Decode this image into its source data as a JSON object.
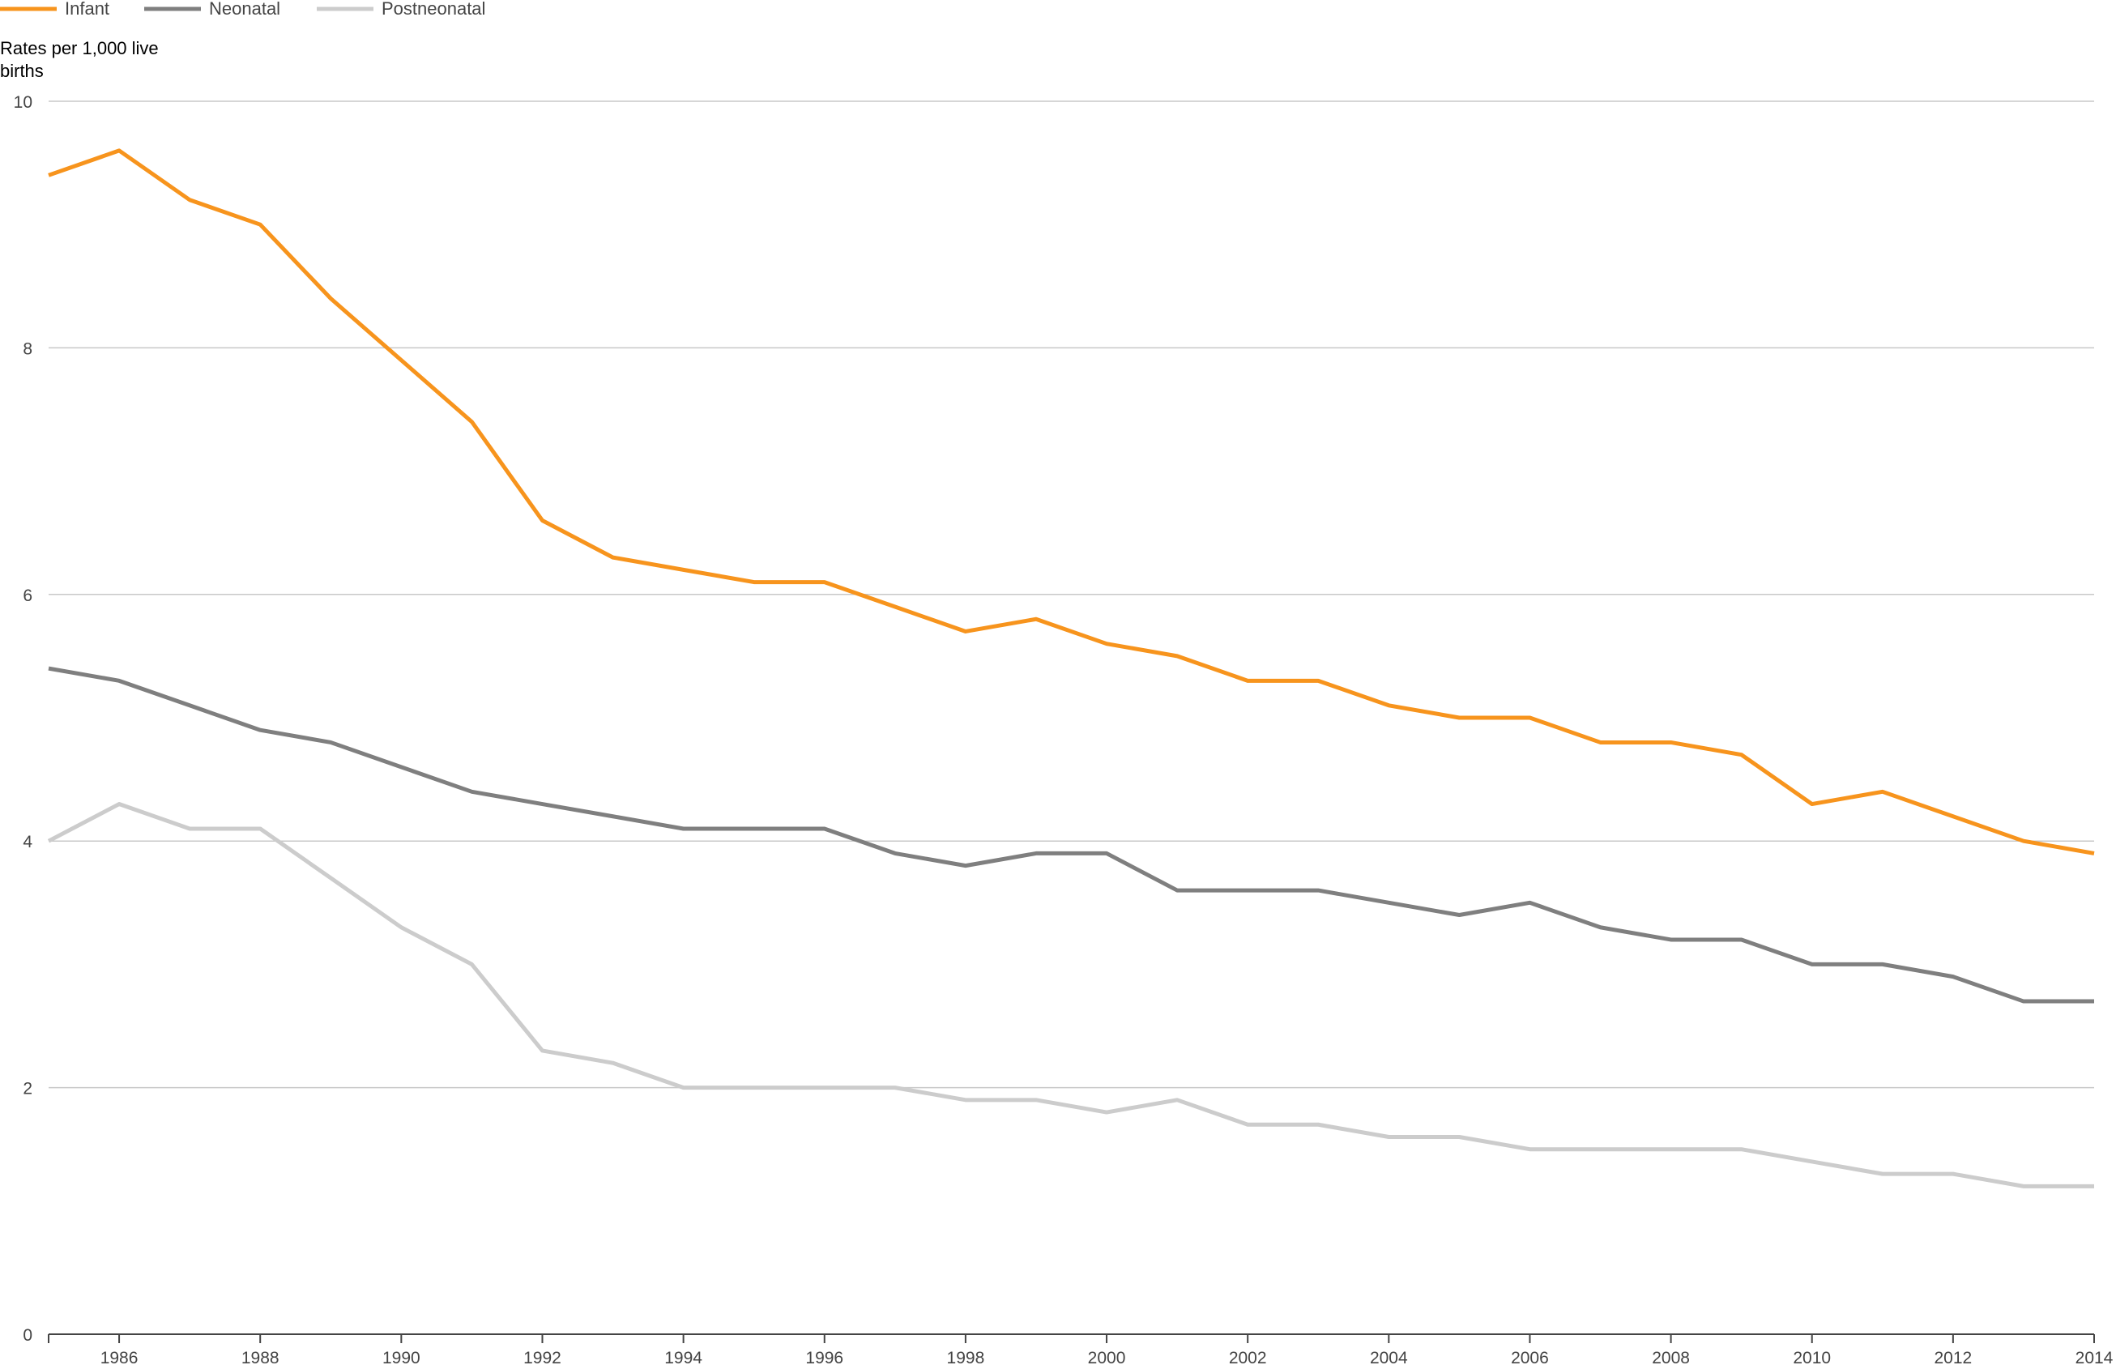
{
  "chart_data": {
    "type": "line",
    "ylabel_lines": [
      "Rates per 1,000 live",
      "births"
    ],
    "xlim": [
      1985,
      2014
    ],
    "ylim": [
      0,
      10
    ],
    "yticks": [
      0,
      2,
      4,
      6,
      8,
      10
    ],
    "xticks": [
      1986,
      1988,
      1990,
      1992,
      1994,
      1996,
      1998,
      2000,
      2002,
      2004,
      2006,
      2008,
      2010,
      2012,
      2014
    ],
    "grid": "horizontal",
    "legend_position": "top-left",
    "x": [
      1985,
      1986,
      1987,
      1988,
      1989,
      1990,
      1991,
      1992,
      1993,
      1994,
      1995,
      1996,
      1997,
      1998,
      1999,
      2000,
      2001,
      2002,
      2003,
      2004,
      2005,
      2006,
      2007,
      2008,
      2009,
      2010,
      2011,
      2012,
      2013,
      2014
    ],
    "series": [
      {
        "name": "Infant",
        "color": "#F7941D",
        "values": [
          9.4,
          9.6,
          9.2,
          9.0,
          8.4,
          7.9,
          7.4,
          6.6,
          6.3,
          6.2,
          6.1,
          6.1,
          5.9,
          5.7,
          5.8,
          5.6,
          5.5,
          5.3,
          5.3,
          5.1,
          5.0,
          5.0,
          4.8,
          4.8,
          4.7,
          4.3,
          4.4,
          4.2,
          4.0,
          3.9
        ]
      },
      {
        "name": "Neonatal",
        "color": "#7F7F7F",
        "values": [
          5.4,
          5.3,
          5.1,
          4.9,
          4.8,
          4.6,
          4.4,
          4.3,
          4.2,
          4.1,
          4.1,
          4.1,
          3.9,
          3.8,
          3.9,
          3.9,
          3.6,
          3.6,
          3.6,
          3.5,
          3.4,
          3.5,
          3.3,
          3.2,
          3.2,
          3.0,
          3.0,
          2.9,
          2.7,
          2.7
        ]
      },
      {
        "name": "Postneonatal",
        "color": "#CCCCCC",
        "values": [
          4.0,
          4.3,
          4.1,
          4.1,
          3.7,
          3.3,
          3.0,
          2.3,
          2.2,
          2.0,
          2.0,
          2.0,
          2.0,
          1.9,
          1.9,
          1.8,
          1.9,
          1.7,
          1.7,
          1.6,
          1.6,
          1.5,
          1.5,
          1.5,
          1.5,
          1.4,
          1.3,
          1.3,
          1.2,
          1.2
        ]
      }
    ]
  }
}
